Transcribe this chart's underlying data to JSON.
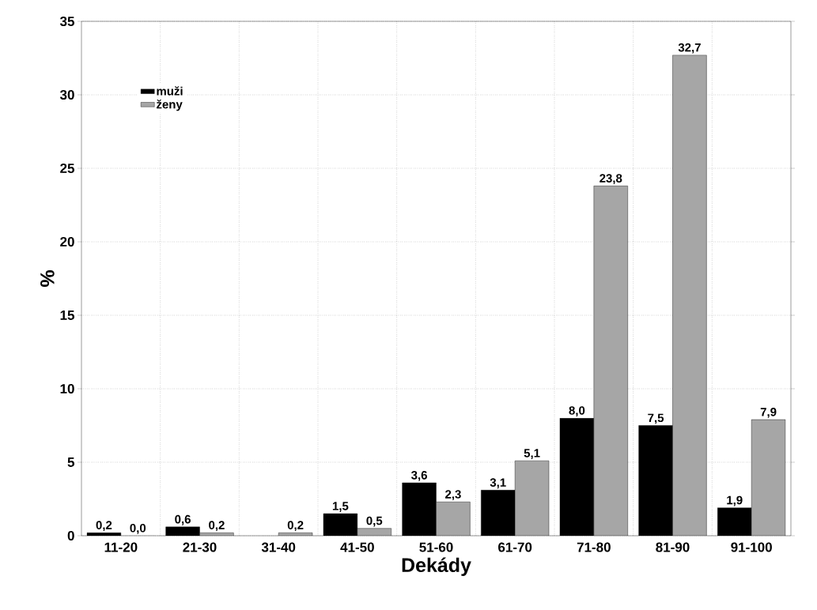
{
  "chart_data": {
    "type": "bar",
    "xlabel": "Dekády",
    "ylabel": "%",
    "categories": [
      "11-20",
      "21-30",
      "31-40",
      "41-50",
      "51-60",
      "61-70",
      "71-80",
      "81-90",
      "91-100"
    ],
    "series": [
      {
        "name": "muži",
        "color": "#000000",
        "values": [
          0.2,
          0.6,
          null,
          1.5,
          3.6,
          3.1,
          8.0,
          7.5,
          1.9
        ],
        "value_labels": [
          "0,2",
          "0,6",
          null,
          "1,5",
          "3,6",
          "3,1",
          "8,0",
          "7,5",
          "1,9"
        ]
      },
      {
        "name": "ženy",
        "color": "#a6a6a6",
        "values": [
          0.0,
          0.2,
          0.2,
          0.5,
          2.3,
          5.1,
          23.8,
          32.7,
          7.9
        ],
        "value_labels": [
          "0,0",
          "0,2",
          "0,2",
          "0,5",
          "2,3",
          "5,1",
          "23,8",
          "32,7",
          "7,9"
        ]
      }
    ],
    "ylim": [
      0,
      35
    ],
    "yticks": [
      0,
      5,
      10,
      15,
      20,
      25,
      30,
      35
    ],
    "grid": true,
    "legend": "top left"
  }
}
